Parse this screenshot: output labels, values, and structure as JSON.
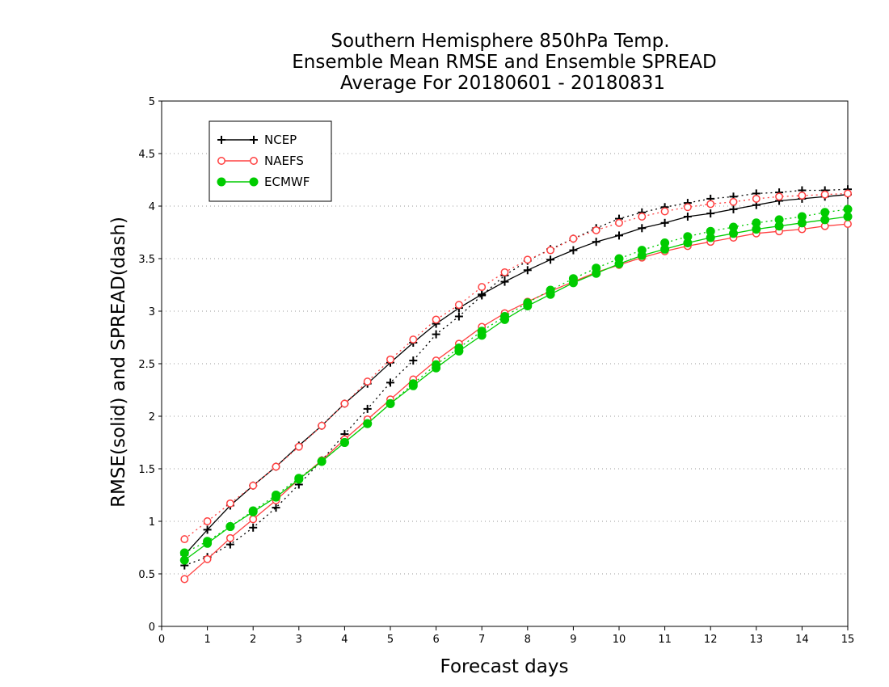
{
  "chart_data": {
    "type": "line",
    "title": [
      "Southern Hemisphere 850hPa Temp.",
      "Ensemble Mean RMSE and Ensemble SPREAD",
      "Average For 20180601 - 20180831"
    ],
    "xlabel": "Forecast days",
    "ylabel": "RMSE(solid) and SPREAD(dash)",
    "xlim": [
      0,
      15
    ],
    "ylim": [
      0,
      5
    ],
    "xticks": [
      "0",
      "1",
      "2",
      "3",
      "4",
      "5",
      "6",
      "7",
      "8",
      "9",
      "10",
      "11",
      "12",
      "13",
      "14",
      "15"
    ],
    "yticks": [
      "0",
      "0.5",
      "1",
      "1.5",
      "2",
      "2.5",
      "3",
      "3.5",
      "4",
      "4.5",
      "5"
    ],
    "grid": "horizontal dotted",
    "legend_position": "top-left",
    "x": [
      0.5,
      1,
      1.5,
      2,
      2.5,
      3,
      3.5,
      4,
      4.5,
      5,
      5.5,
      6,
      6.5,
      7,
      7.5,
      8,
      8.5,
      9,
      9.5,
      10,
      10.5,
      11,
      11.5,
      12,
      12.5,
      13,
      13.5,
      14,
      14.5,
      15
    ],
    "series": [
      {
        "name": "NCEP",
        "color": "#000000",
        "marker": "plus",
        "rmse": [
          0.68,
          0.92,
          1.15,
          1.34,
          1.52,
          1.72,
          1.91,
          2.12,
          2.31,
          2.51,
          2.7,
          2.88,
          3.03,
          3.16,
          3.28,
          3.39,
          3.49,
          3.58,
          3.66,
          3.72,
          3.79,
          3.84,
          3.9,
          3.93,
          3.97,
          4.01,
          4.05,
          4.07,
          4.09,
          4.11
        ],
        "spread": [
          0.58,
          0.66,
          0.78,
          0.94,
          1.13,
          1.35,
          1.58,
          1.83,
          2.07,
          2.32,
          2.53,
          2.78,
          2.95,
          3.15,
          3.34,
          3.48,
          3.59,
          3.69,
          3.79,
          3.88,
          3.94,
          3.99,
          4.03,
          4.07,
          4.09,
          4.12,
          4.13,
          4.15,
          4.15,
          4.16
        ]
      },
      {
        "name": "NAEFS",
        "color": "#ff4040",
        "marker": "open-circle",
        "rmse": [
          0.45,
          0.64,
          0.84,
          1.02,
          1.2,
          1.4,
          1.58,
          1.78,
          1.97,
          2.16,
          2.35,
          2.53,
          2.69,
          2.85,
          2.98,
          3.09,
          3.19,
          3.28,
          3.37,
          3.44,
          3.51,
          3.57,
          3.62,
          3.66,
          3.7,
          3.74,
          3.76,
          3.78,
          3.81,
          3.83
        ],
        "spread": [
          0.83,
          1.0,
          1.17,
          1.34,
          1.52,
          1.71,
          1.91,
          2.12,
          2.33,
          2.54,
          2.73,
          2.92,
          3.06,
          3.23,
          3.37,
          3.49,
          3.58,
          3.69,
          3.77,
          3.84,
          3.9,
          3.95,
          3.99,
          4.02,
          4.04,
          4.07,
          4.09,
          4.1,
          4.11,
          4.12
        ]
      },
      {
        "name": "ECMWF",
        "color": "#00cc00",
        "marker": "filled-circle",
        "rmse": [
          0.63,
          0.79,
          0.95,
          1.09,
          1.23,
          1.4,
          1.57,
          1.75,
          1.93,
          2.12,
          2.29,
          2.46,
          2.62,
          2.77,
          2.92,
          3.05,
          3.16,
          3.27,
          3.36,
          3.45,
          3.53,
          3.59,
          3.65,
          3.7,
          3.74,
          3.78,
          3.81,
          3.84,
          3.87,
          3.9
        ],
        "spread": [
          0.7,
          0.81,
          0.95,
          1.1,
          1.25,
          1.41,
          1.57,
          1.75,
          1.93,
          2.12,
          2.31,
          2.49,
          2.65,
          2.81,
          2.95,
          3.08,
          3.2,
          3.31,
          3.41,
          3.5,
          3.58,
          3.65,
          3.71,
          3.76,
          3.8,
          3.84,
          3.87,
          3.9,
          3.94,
          3.97
        ]
      }
    ]
  }
}
